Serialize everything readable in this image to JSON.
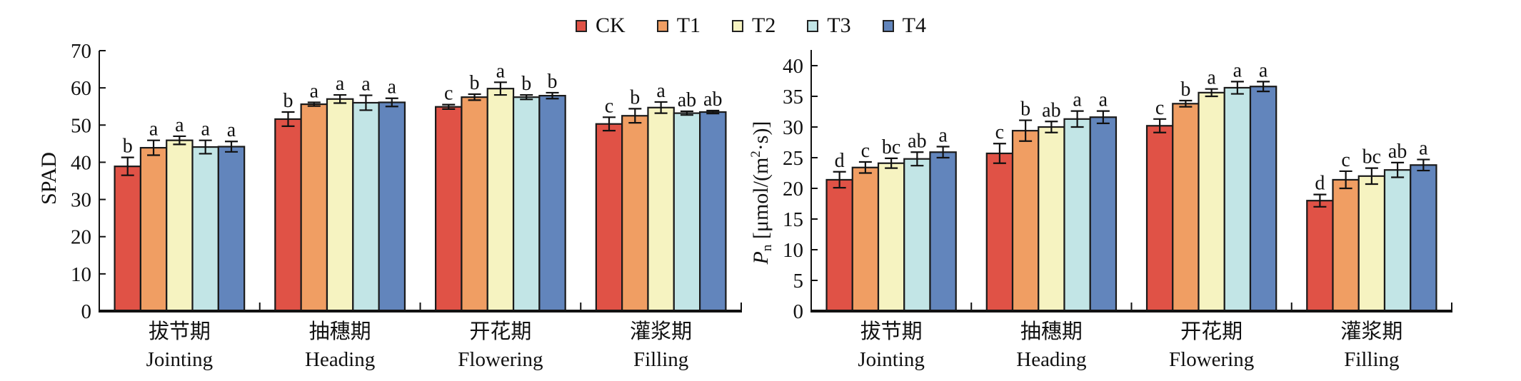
{
  "legend": [
    {
      "name": "CK",
      "color": "#E05246"
    },
    {
      "name": "T1",
      "color": "#F09E63"
    },
    {
      "name": "T2",
      "color": "#F6F3C1"
    },
    {
      "name": "T3",
      "color": "#C2E5E6"
    },
    {
      "name": "T4",
      "color": "#6285BC"
    }
  ],
  "chart_data": [
    {
      "type": "bar",
      "title": "",
      "ylabel": "SPAD",
      "xlabel": "",
      "ylim": [
        0,
        70
      ],
      "yticks": [
        0,
        10,
        20,
        30,
        40,
        50,
        60,
        70
      ],
      "categories": [
        {
          "cn": "拔节期",
          "en": "Jointing"
        },
        {
          "cn": "抽穗期",
          "en": "Heading"
        },
        {
          "cn": "开花期",
          "en": "Flowering"
        },
        {
          "cn": "灌浆期",
          "en": "Filling"
        }
      ],
      "series": [
        {
          "name": "CK",
          "values": [
            38.9,
            51.6,
            54.9,
            50.3
          ],
          "errors": [
            2.4,
            1.9,
            0.6,
            1.8
          ],
          "letters": [
            "b",
            "b",
            "c",
            "c"
          ]
        },
        {
          "name": "T1",
          "values": [
            43.9,
            55.6,
            57.5,
            52.5
          ],
          "errors": [
            2.0,
            0.5,
            0.8,
            1.9
          ],
          "letters": [
            "a",
            "a",
            "b",
            "b"
          ]
        },
        {
          "name": "T2",
          "values": [
            45.9,
            57.0,
            59.8,
            54.7
          ],
          "errors": [
            1.1,
            1.1,
            1.7,
            1.5
          ],
          "letters": [
            "a",
            "a",
            "a",
            "a"
          ]
        },
        {
          "name": "T3",
          "values": [
            44.1,
            56.0,
            57.5,
            53.2
          ],
          "errors": [
            1.8,
            2.0,
            0.6,
            0.5
          ],
          "letters": [
            "a",
            "a",
            "b",
            "ab"
          ]
        },
        {
          "name": "T4",
          "values": [
            44.2,
            56.1,
            57.9,
            53.5
          ],
          "errors": [
            1.4,
            1.1,
            0.8,
            0.4
          ],
          "letters": [
            "a",
            "a",
            "b",
            "ab"
          ]
        }
      ],
      "grid": false,
      "legend_position": "top-center"
    },
    {
      "type": "bar",
      "title": "",
      "ylabel_main": "P",
      "ylabel_sub": "n",
      "ylabel_unit": " [μmol/(m",
      "ylabel_sup": "2",
      "ylabel_tail": "·s)]",
      "xlabel": "",
      "ylim": [
        0,
        42.5
      ],
      "yticks": [
        0,
        5,
        10,
        15,
        20,
        25,
        30,
        35,
        40
      ],
      "categories": [
        {
          "cn": "拔节期",
          "en": "Jointing"
        },
        {
          "cn": "抽穗期",
          "en": "Heading"
        },
        {
          "cn": "开花期",
          "en": "Flowering"
        },
        {
          "cn": "灌浆期",
          "en": "Filling"
        }
      ],
      "series": [
        {
          "name": "CK",
          "values": [
            21.4,
            25.7,
            30.2,
            18.0
          ],
          "errors": [
            1.3,
            1.6,
            1.1,
            1.0
          ],
          "letters": [
            "d",
            "c",
            "c",
            "d"
          ]
        },
        {
          "name": "T1",
          "values": [
            23.4,
            29.4,
            33.8,
            21.4
          ],
          "errors": [
            0.9,
            1.7,
            0.5,
            1.4
          ],
          "letters": [
            "c",
            "b",
            "b",
            "c"
          ]
        },
        {
          "name": "T2",
          "values": [
            24.1,
            30.0,
            35.6,
            22.0
          ],
          "errors": [
            0.8,
            0.9,
            0.6,
            1.3
          ],
          "letters": [
            "bc",
            "ab",
            "a",
            "bc"
          ]
        },
        {
          "name": "T3",
          "values": [
            24.8,
            31.3,
            36.4,
            23.0
          ],
          "errors": [
            1.1,
            1.3,
            1.0,
            1.2
          ],
          "letters": [
            "ab",
            "a",
            "a",
            "ab"
          ]
        },
        {
          "name": "T4",
          "values": [
            25.9,
            31.6,
            36.6,
            23.8
          ],
          "errors": [
            0.9,
            1.0,
            0.8,
            0.9
          ],
          "letters": [
            "a",
            "a",
            "a",
            "a"
          ]
        }
      ],
      "grid": false,
      "legend_position": "top-center"
    }
  ]
}
